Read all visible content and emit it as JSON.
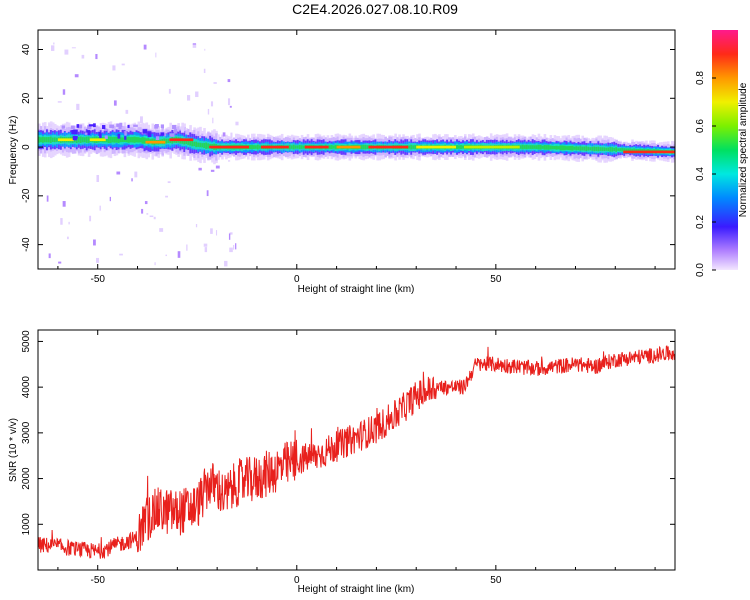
{
  "title": "C2E4.2026.027.08.10.R09",
  "chart_data": [
    {
      "type": "heatmap",
      "name": "spectrogram",
      "xlabel": "Height of straight line (km)",
      "ylabel": "Frequency (Hz)",
      "xlim": [
        -65,
        95
      ],
      "ylim": [
        -50,
        48
      ],
      "xticks": [
        -50,
        0,
        50
      ],
      "yticks": [
        -40,
        -20,
        0,
        20,
        40
      ],
      "ridge_frequency": [
        [
          -65,
          3
        ],
        [
          -55,
          3
        ],
        [
          -45,
          3
        ],
        [
          -40,
          3
        ],
        [
          -35,
          2
        ],
        [
          -30,
          3
        ],
        [
          -25,
          1
        ],
        [
          -20,
          0
        ],
        [
          -10,
          0
        ],
        [
          0,
          0
        ],
        [
          10,
          0
        ],
        [
          20,
          0
        ],
        [
          40,
          0
        ],
        [
          60,
          0
        ],
        [
          80,
          -1
        ],
        [
          95,
          -2
        ]
      ],
      "colorbar": {
        "label": "Normalized spectral amplitude",
        "ticks": [
          0.0,
          0.2,
          0.4,
          0.6,
          0.8
        ],
        "range": [
          0,
          1
        ]
      }
    },
    {
      "type": "line",
      "name": "snr",
      "xlabel": "Height of straight line (km)",
      "ylabel": "SNR (10 * v/v)",
      "xlim": [
        -65,
        95
      ],
      "ylim": [
        0,
        5250
      ],
      "xticks": [
        -50,
        0,
        50
      ],
      "yticks": [
        1000,
        2000,
        3000,
        4000,
        5000
      ],
      "color": "#e8201c",
      "x": [
        -65,
        -60,
        -55,
        -50,
        -45,
        -40,
        -38,
        -35,
        -30,
        -25,
        -22,
        -20,
        -18,
        -15,
        -10,
        -5,
        0,
        5,
        10,
        15,
        20,
        25,
        30,
        35,
        40,
        42,
        45,
        50,
        55,
        60,
        65,
        70,
        75,
        80,
        85,
        90,
        95
      ],
      "y": [
        550,
        520,
        450,
        400,
        550,
        700,
        1100,
        1300,
        1250,
        1400,
        1900,
        1800,
        1600,
        1900,
        2000,
        2200,
        2400,
        2500,
        2700,
        2900,
        3100,
        3400,
        3800,
        4000,
        4000,
        4000,
        4500,
        4500,
        4450,
        4400,
        4450,
        4500,
        4450,
        4600,
        4650,
        4700,
        4750
      ]
    }
  ]
}
